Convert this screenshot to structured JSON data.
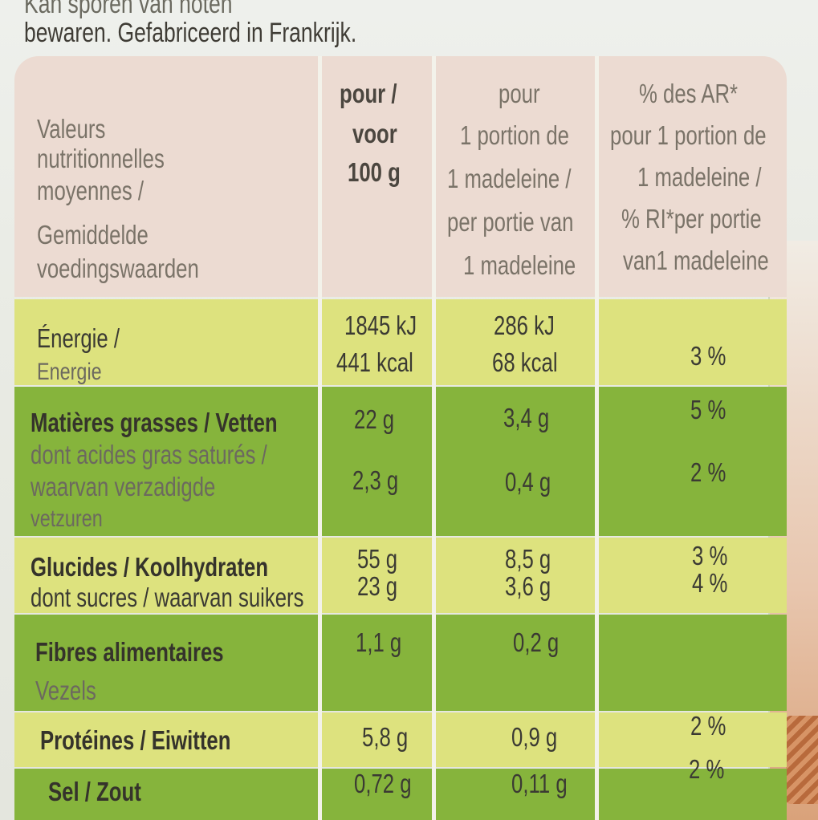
{
  "header_text": {
    "line1": "Kan sporen van noten",
    "line2": "bewaren. Gefabriceerd in Frankrijk."
  },
  "colors": {
    "header_row": "#ecdbd2",
    "yellow_row": "#dde27e",
    "green_row": "#86b43c",
    "separator": "#f3f2ea"
  },
  "table": {
    "headers": {
      "label": [
        "Valeurs",
        "nutritionnelles",
        "moyennes /",
        "Gemiddelde",
        "voedingswaarden"
      ],
      "per100": [
        "pour /",
        "voor",
        "100 g"
      ],
      "portion": [
        "pour",
        "1 portion de",
        "1 madeleine /",
        "per portie van",
        "1 madeleine"
      ],
      "ri": [
        "% des AR*",
        "pour 1 portion de",
        "1 madeleine /",
        "% RI*per portie",
        "van1 madeleine"
      ]
    },
    "rows": {
      "energy": {
        "label1": "Énergie /",
        "label2": "Energie",
        "per100_kj": "1845 kJ",
        "per100_kcal": "441 kcal",
        "portion_kj": "286 kJ",
        "portion_kcal": "68 kcal",
        "ri": "3 %"
      },
      "fat": {
        "label": "Matières grasses / Vetten",
        "per100": "22 g",
        "portion": "3,4 g",
        "ri": "5 %"
      },
      "saturated": {
        "label1": "dont acides gras saturés /",
        "label2": "waarvan verzadigde",
        "label3": "vetzuren",
        "per100": "2,3 g",
        "portion": "0,4 g",
        "ri": "2 %"
      },
      "carbs": {
        "label": "Glucides / Koolhydraten",
        "per100": "55 g",
        "portion": "8,5 g",
        "ri": "3 %"
      },
      "sugars": {
        "label": "dont sucres / waarvan suikers",
        "per100": "23 g",
        "portion": "3,6 g",
        "ri": "4 %"
      },
      "fibre": {
        "label1": "Fibres alimentaires",
        "label2": "Vezels",
        "per100": "1,1 g",
        "portion": "0,2 g"
      },
      "protein": {
        "label": "Protéines / Eiwitten",
        "per100": "5,8 g",
        "portion": "0,9 g",
        "ri": "2 %"
      },
      "salt": {
        "label": "Sel / Zout",
        "per100": "0,72 g",
        "portion": "0,11 g",
        "ri": "2 %"
      }
    }
  }
}
